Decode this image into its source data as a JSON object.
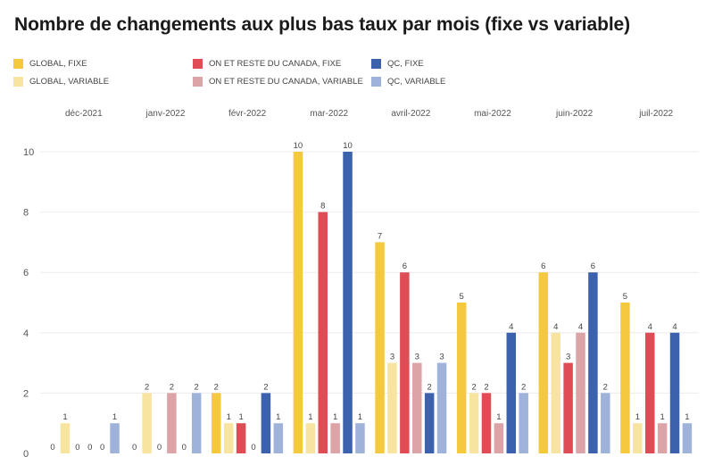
{
  "chart_data": {
    "type": "bar",
    "title": "Nombre de changements aux plus bas taux par mois (fixe vs variable)",
    "xlabel": "",
    "ylabel": "",
    "ylim": [
      0,
      10
    ],
    "yticks": [
      "0",
      "2",
      "4",
      "6",
      "8",
      "10"
    ],
    "grid": true,
    "legend_position": "top",
    "categories": [
      "déc-2021",
      "janv-2022",
      "févr-2022",
      "mar-2022",
      "avril-2022",
      "mai-2022",
      "juin-2022",
      "juil-2022"
    ],
    "series": [
      {
        "name": "GLOBAL, FIXE",
        "color": "#f5c93e",
        "values": [
          0,
          0,
          2,
          10,
          7,
          5,
          6,
          5
        ]
      },
      {
        "name": "GLOBAL, VARIABLE",
        "color": "#f7e4a0",
        "values": [
          1,
          2,
          1,
          1,
          3,
          2,
          4,
          1
        ]
      },
      {
        "name": "ON ET RESTE DU CANADA, FIXE",
        "color": "#df4c55",
        "values": [
          0,
          0,
          1,
          8,
          6,
          2,
          3,
          4
        ]
      },
      {
        "name": "ON ET RESTE DU CANADA, VARIABLE",
        "color": "#dda4a8",
        "values": [
          0,
          2,
          0,
          1,
          3,
          1,
          4,
          1
        ]
      },
      {
        "name": "QC, FIXE",
        "color": "#3c61ad",
        "values": [
          0,
          0,
          2,
          10,
          2,
          4,
          6,
          4
        ]
      },
      {
        "name": "QC, VARIABLE",
        "color": "#9fb3da",
        "values": [
          1,
          2,
          1,
          1,
          3,
          2,
          2,
          1
        ]
      }
    ]
  }
}
